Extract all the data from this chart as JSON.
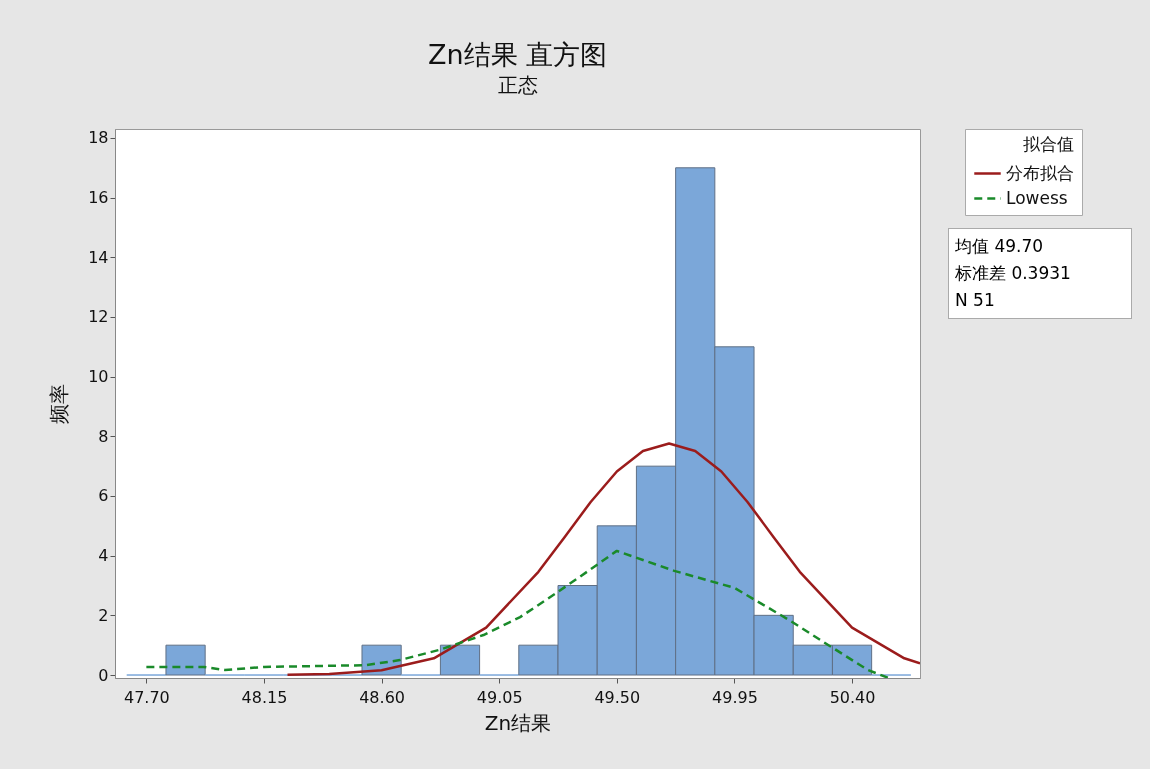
{
  "chart_data": {
    "type": "histogram",
    "title": "Zn结果 直方图",
    "subtitle": "正态",
    "xlabel": "Zn结果",
    "ylabel": "频率",
    "legend_title": "拟合值",
    "series": [
      {
        "type": "histogram",
        "color": "#7ba7d9",
        "bins": [
          47.625,
          47.775,
          47.925,
          48.075,
          48.225,
          48.375,
          48.525,
          48.675,
          48.825,
          48.975,
          49.125,
          49.275,
          49.425,
          49.575,
          49.725,
          49.875,
          50.025,
          50.175,
          50.325,
          50.475,
          50.625
        ],
        "values": [
          0,
          1,
          0,
          0,
          0,
          0,
          1,
          0,
          1,
          0,
          1,
          3,
          5,
          7,
          17,
          11,
          2,
          1,
          1,
          0
        ]
      },
      {
        "type": "line",
        "name": "分布拟合",
        "color": "#9b1c1c",
        "line_style": "solid",
        "x": [
          48.24,
          48.4,
          48.6,
          48.8,
          49.0,
          49.2,
          49.3,
          49.4,
          49.5,
          49.6,
          49.7,
          49.8,
          49.9,
          50.0,
          50.1,
          50.2,
          50.4,
          50.6,
          50.66
        ],
        "values": [
          0.01,
          0.03,
          0.16,
          0.56,
          1.59,
          3.46,
          4.62,
          5.8,
          6.82,
          7.51,
          7.76,
          7.51,
          6.82,
          5.8,
          4.62,
          3.46,
          1.59,
          0.56,
          0.39
        ]
      },
      {
        "type": "line",
        "name": "Lowess",
        "color": "#1a8a2a",
        "line_style": "dashed",
        "x": [
          47.7,
          47.92,
          48.0,
          48.15,
          48.54,
          48.67,
          48.82,
          48.99,
          49.13,
          49.24,
          49.36,
          49.5,
          49.72,
          49.95,
          50.16,
          50.31,
          50.46,
          50.54
        ],
        "values": [
          0.27,
          0.27,
          0.17,
          0.27,
          0.33,
          0.5,
          0.84,
          1.34,
          1.94,
          2.58,
          3.3,
          4.16,
          3.49,
          2.92,
          1.84,
          1.0,
          0.17,
          -0.1
        ]
      }
    ],
    "annotations": [
      "均值 49.70",
      "标准差 0.3931",
      "N 51"
    ],
    "xlim": [
      47.58,
      50.66
    ],
    "ylim": [
      -0.1,
      18.3
    ],
    "xticks": [
      {
        "value": 47.7,
        "label": "47.70"
      },
      {
        "value": 48.15,
        "label": "48.15"
      },
      {
        "value": 48.6,
        "label": "48.60"
      },
      {
        "value": 49.05,
        "label": "49.05"
      },
      {
        "value": 49.5,
        "label": "49.50"
      },
      {
        "value": 49.95,
        "label": "49.95"
      },
      {
        "value": 50.4,
        "label": "50.40"
      }
    ],
    "yticks": [
      0,
      2,
      4,
      6,
      8,
      10,
      12,
      14,
      16,
      18
    ],
    "grid": false,
    "legend": "right"
  }
}
